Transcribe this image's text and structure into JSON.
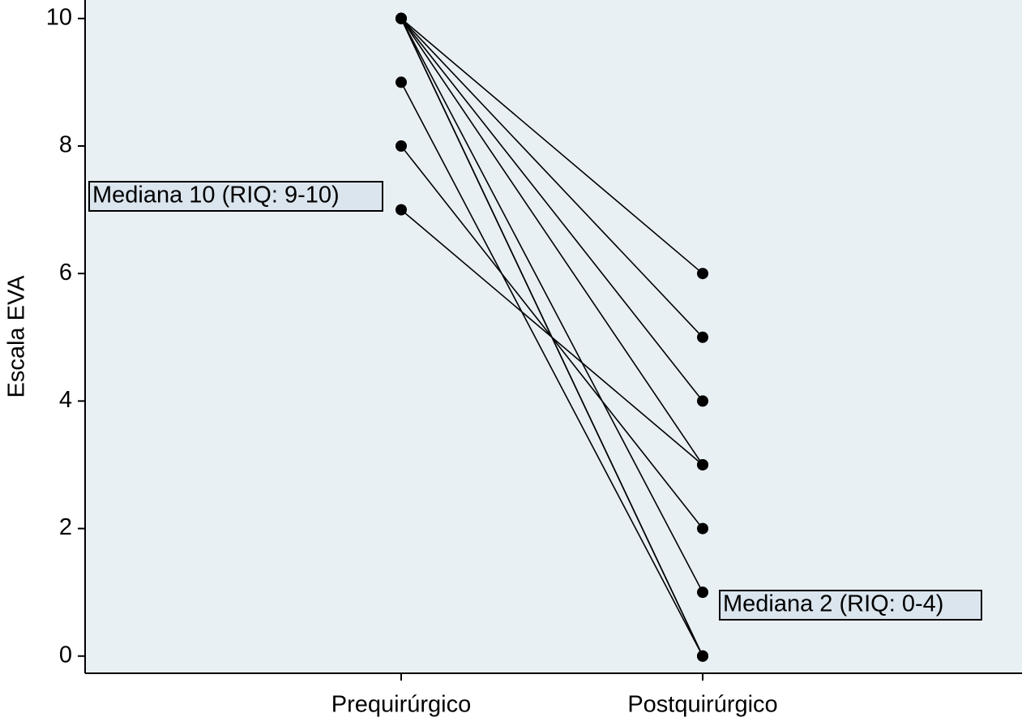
{
  "chart_data": {
    "type": "line",
    "y_label": "Escala EVA",
    "categories": [
      "Prequirúrgico",
      "Postquirúrgico"
    ],
    "series": [
      {
        "color": "#000000",
        "values": [
          10,
          6
        ]
      },
      {
        "color": "#000000",
        "values": [
          10,
          5
        ]
      },
      {
        "color": "#000000",
        "values": [
          10,
          4
        ]
      },
      {
        "color": "#000000",
        "values": [
          10,
          3
        ]
      },
      {
        "color": "#000000",
        "values": [
          10,
          1
        ]
      },
      {
        "color": "#000000",
        "values": [
          10,
          0
        ]
      },
      {
        "color": "#000000",
        "values": [
          10,
          0
        ]
      },
      {
        "color": "#000000",
        "values": [
          9,
          0
        ]
      },
      {
        "color": "#000000",
        "values": [
          8,
          2
        ]
      },
      {
        "color": "#000000",
        "values": [
          7,
          3
        ]
      }
    ],
    "annotations": [
      "Mediana 10 (RIQ: 9-10)",
      "Mediana 2 (RIQ: 0-4)"
    ],
    "ylim": [
      -0.27,
      10.29
    ],
    "yticks": [
      0,
      2,
      4,
      6,
      8,
      10
    ],
    "grid": false
  }
}
